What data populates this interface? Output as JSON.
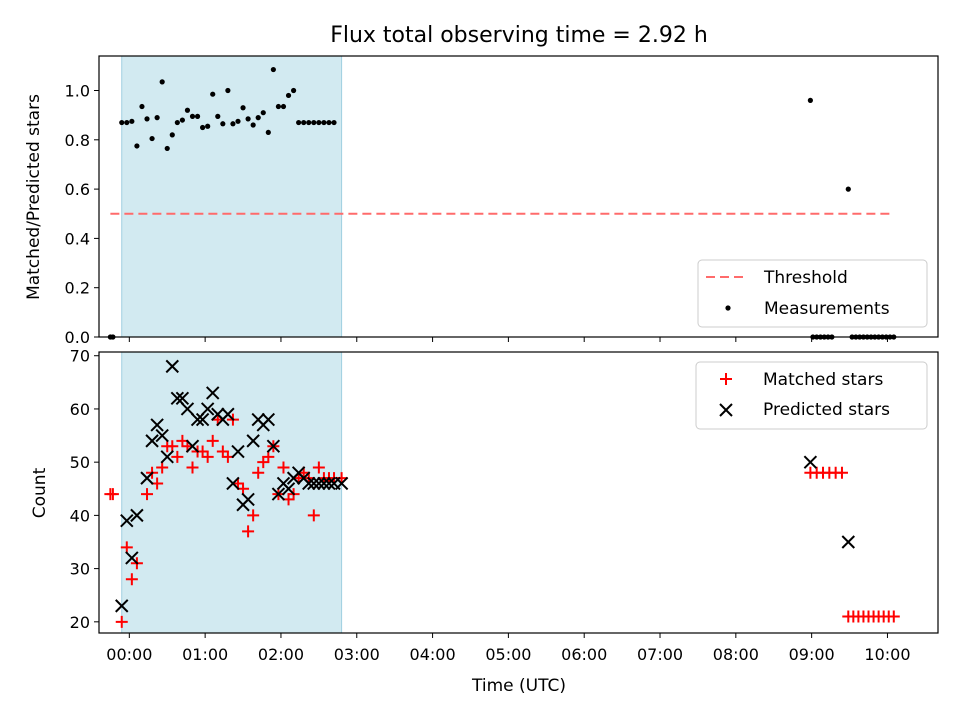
{
  "colors": {
    "shade": "#add8e6",
    "threshold": "#ff6b6b",
    "measurement": "#000000",
    "matched": "#ff0000",
    "predicted": "#000000"
  },
  "chart_data": [
    {
      "type": "scatter",
      "title": "Flux total observing time = 2.92 h",
      "xlabel": "",
      "ylabel": "Matched/Predicted stars",
      "xlim": [
        "-00:24",
        "10:40"
      ],
      "ylim": [
        0,
        1.14
      ],
      "y_ticks": [
        "0.0",
        "0.2",
        "0.4",
        "0.6",
        "0.8",
        "1.0"
      ],
      "shaded_x_range": [
        "-00:06",
        "02:48"
      ],
      "legend_position": "lower right",
      "threshold": {
        "name": "Threshold",
        "value": 0.5,
        "x_range": [
          "-00:15",
          "10:05"
        ]
      },
      "series": [
        {
          "name": "Measurements",
          "x": [
            "-00:15",
            "-00:13",
            "-00:06",
            "-00:02",
            "00:02",
            "00:06",
            "00:10",
            "00:14",
            "00:18",
            "00:22",
            "00:26",
            "00:30",
            "00:34",
            "00:38",
            "00:42",
            "00:46",
            "00:50",
            "00:54",
            "00:58",
            "01:02",
            "01:06",
            "01:10",
            "01:14",
            "01:18",
            "01:22",
            "01:26",
            "01:30",
            "01:34",
            "01:38",
            "01:42",
            "01:46",
            "01:50",
            "01:54",
            "01:58",
            "02:02",
            "02:06",
            "02:10",
            "02:14",
            "02:18",
            "02:22",
            "02:26",
            "02:30",
            "02:34",
            "02:38",
            "02:42",
            "08:59",
            "09:01",
            "09:04",
            "09:07",
            "09:10",
            "09:13",
            "09:16",
            "09:29",
            "09:32",
            "09:35",
            "09:38",
            "09:41",
            "09:44",
            "09:47",
            "09:50",
            "09:53",
            "09:56",
            "09:59",
            "10:02",
            "10:05"
          ],
          "y": [
            0.0,
            0.0,
            0.87,
            0.87,
            0.875,
            0.775,
            0.935,
            0.885,
            0.805,
            0.89,
            1.035,
            0.765,
            0.82,
            0.87,
            0.88,
            0.92,
            0.895,
            0.895,
            0.85,
            0.855,
            0.985,
            0.895,
            0.865,
            1.0,
            0.865,
            0.875,
            0.93,
            0.885,
            0.86,
            0.89,
            0.91,
            0.83,
            1.085,
            0.935,
            0.935,
            0.98,
            1.0,
            0.87,
            0.87,
            0.87,
            0.87,
            0.87,
            0.87,
            0.87,
            0.87,
            0.96,
            0.0,
            0.0,
            0.0,
            0.0,
            0.0,
            0.0,
            0.6,
            0.0,
            0.0,
            0.0,
            0.0,
            0.0,
            0.0,
            0.0,
            0.0,
            0.0,
            0.0,
            0.0,
            0.0
          ]
        }
      ]
    },
    {
      "type": "scatter",
      "title": "",
      "xlabel": "Time (UTC)",
      "ylabel": "Count",
      "xlim": [
        "-00:24",
        "10:40"
      ],
      "ylim": [
        17.9,
        70.7
      ],
      "x_ticks": [
        "00:00",
        "01:00",
        "02:00",
        "03:00",
        "04:00",
        "05:00",
        "06:00",
        "07:00",
        "08:00",
        "09:00",
        "10:00"
      ],
      "y_ticks": [
        "20",
        "30",
        "40",
        "50",
        "60",
        "70"
      ],
      "shaded_x_range": [
        "-00:06",
        "02:48"
      ],
      "legend_position": "upper right",
      "series": [
        {
          "name": "Matched stars",
          "marker": "+",
          "x": [
            "-00:15",
            "-00:13",
            "-00:06",
            "-00:02",
            "00:02",
            "00:06",
            "00:14",
            "00:18",
            "00:22",
            "00:26",
            "00:30",
            "00:34",
            "00:38",
            "00:42",
            "00:46",
            "00:50",
            "00:54",
            "00:58",
            "01:02",
            "01:06",
            "01:10",
            "01:14",
            "01:18",
            "01:22",
            "01:26",
            "01:30",
            "01:34",
            "01:38",
            "01:42",
            "01:46",
            "01:50",
            "01:54",
            "01:58",
            "02:02",
            "02:06",
            "02:10",
            "02:14",
            "02:18",
            "02:22",
            "02:26",
            "02:30",
            "02:34",
            "02:38",
            "02:42",
            "02:48",
            "08:59",
            "09:04",
            "09:09",
            "09:14",
            "09:19",
            "09:24",
            "09:29",
            "09:33",
            "09:37",
            "09:41",
            "09:45",
            "09:49",
            "09:53",
            "09:57",
            "10:01",
            "10:05"
          ],
          "y": [
            44,
            44,
            20,
            34,
            28,
            31,
            44,
            48,
            46,
            49,
            53,
            53,
            51,
            54,
            53,
            49,
            52,
            52,
            51,
            54,
            58,
            52,
            51,
            58,
            46,
            45,
            37,
            40,
            48,
            50,
            51,
            53,
            44,
            49,
            43,
            44,
            47,
            48,
            47,
            40,
            49,
            47,
            47,
            47,
            47,
            48,
            48,
            48,
            48,
            48,
            48,
            21,
            21,
            21,
            21,
            21,
            21,
            21,
            21,
            21,
            21
          ]
        },
        {
          "name": "Predicted stars",
          "marker": "x",
          "x": [
            "-00:06",
            "-00:02",
            "00:02",
            "00:06",
            "00:14",
            "00:18",
            "00:22",
            "00:26",
            "00:30",
            "00:34",
            "00:38",
            "00:42",
            "00:46",
            "00:50",
            "00:54",
            "00:58",
            "01:02",
            "01:06",
            "01:10",
            "01:14",
            "01:18",
            "01:22",
            "01:26",
            "01:30",
            "01:34",
            "01:38",
            "01:42",
            "01:46",
            "01:50",
            "01:54",
            "01:58",
            "02:02",
            "02:06",
            "02:10",
            "02:14",
            "02:18",
            "02:22",
            "02:26",
            "02:30",
            "02:34",
            "02:38",
            "02:42",
            "02:48",
            "08:59",
            "09:29"
          ],
          "y": [
            23,
            39,
            32,
            40,
            47,
            54,
            57,
            55,
            51,
            68,
            62,
            62,
            60,
            53,
            58,
            58,
            60,
            63,
            59,
            58,
            59,
            46,
            52,
            42,
            43,
            54,
            58,
            57,
            58,
            53,
            44,
            46,
            45,
            47,
            48,
            47,
            46,
            46,
            46,
            46,
            46,
            46,
            46,
            50,
            35
          ]
        }
      ]
    }
  ]
}
